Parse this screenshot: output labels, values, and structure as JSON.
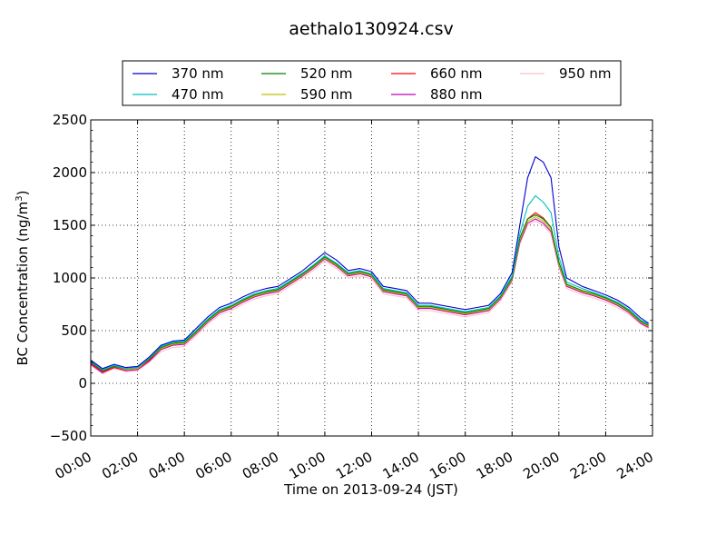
{
  "chart_data": {
    "type": "line",
    "title": "aethalo130924.csv",
    "xlabel": "Time on 2013-09-24 (JST)",
    "ylabel": "BC Concentration (ng/m",
    "ylabel_sup": "3",
    "ylabel_close": ")",
    "xlim": [
      "00:00",
      "24:00"
    ],
    "ylim": [
      -500,
      2500
    ],
    "x_ticks": [
      "00:00",
      "02:00",
      "04:00",
      "06:00",
      "08:00",
      "10:00",
      "12:00",
      "14:00",
      "16:00",
      "18:00",
      "20:00",
      "22:00",
      "24:00"
    ],
    "y_ticks": [
      "2500",
      "2000",
      "1500",
      "1000",
      "500",
      "0",
      "−500"
    ],
    "grid": true,
    "legend_position": "top",
    "x_times": [
      "00:00",
      "00:30",
      "01:00",
      "01:30",
      "02:00",
      "02:30",
      "03:00",
      "03:30",
      "04:00",
      "04:30",
      "05:00",
      "05:30",
      "06:00",
      "06:30",
      "07:00",
      "07:30",
      "08:00",
      "08:30",
      "09:00",
      "09:30",
      "10:00",
      "10:30",
      "11:00",
      "11:30",
      "12:00",
      "12:30",
      "13:00",
      "13:30",
      "14:00",
      "14:30",
      "15:00",
      "15:30",
      "16:00",
      "16:30",
      "17:00",
      "17:30",
      "18:00",
      "18:20",
      "18:40",
      "19:00",
      "19:20",
      "19:40",
      "20:00",
      "20:20",
      "20:40",
      "21:00",
      "21:30",
      "22:00",
      "22:30",
      "23:00",
      "23:30",
      "23:50"
    ],
    "series": [
      {
        "name": "370 nm",
        "color": "#0000cc",
        "values": [
          220,
          140,
          180,
          150,
          160,
          250,
          360,
          400,
          410,
          520,
          630,
          720,
          760,
          820,
          870,
          900,
          920,
          990,
          1060,
          1150,
          1240,
          1170,
          1070,
          1090,
          1060,
          920,
          900,
          880,
          760,
          760,
          740,
          720,
          700,
          720,
          740,
          850,
          1050,
          1500,
          1950,
          2150,
          2100,
          1950,
          1300,
          1000,
          960,
          920,
          880,
          840,
          790,
          720,
          620,
          570
        ]
      },
      {
        "name": "470 nm",
        "color": "#00bfbf",
        "values": [
          210,
          130,
          170,
          140,
          150,
          240,
          350,
          390,
          400,
          500,
          610,
          700,
          740,
          800,
          850,
          880,
          900,
          970,
          1040,
          1120,
          1210,
          1140,
          1050,
          1070,
          1040,
          900,
          880,
          860,
          740,
          740,
          720,
          700,
          680,
          700,
          720,
          830,
          1020,
          1420,
          1680,
          1780,
          1720,
          1620,
          1200,
          960,
          930,
          900,
          860,
          820,
          770,
          700,
          600,
          560
        ]
      },
      {
        "name": "520 nm",
        "color": "#008000",
        "values": [
          200,
          120,
          160,
          140,
          150,
          230,
          340,
          380,
          390,
          490,
          600,
          690,
          730,
          790,
          840,
          870,
          890,
          960,
          1030,
          1110,
          1200,
          1130,
          1040,
          1060,
          1030,
          890,
          870,
          850,
          730,
          730,
          710,
          690,
          670,
          690,
          710,
          820,
          1000,
          1380,
          1560,
          1600,
          1560,
          1480,
          1150,
          940,
          910,
          880,
          850,
          810,
          760,
          690,
          590,
          550
        ]
      },
      {
        "name": "590 nm",
        "color": "#bfbf00",
        "values": [
          200,
          120,
          160,
          130,
          140,
          230,
          330,
          370,
          380,
          480,
          590,
          680,
          720,
          780,
          830,
          860,
          880,
          950,
          1020,
          1100,
          1190,
          1120,
          1030,
          1050,
          1020,
          880,
          860,
          840,
          720,
          720,
          700,
          680,
          660,
          680,
          700,
          810,
          990,
          1360,
          1540,
          1580,
          1540,
          1460,
          1130,
          930,
          900,
          870,
          840,
          800,
          750,
          680,
          580,
          540
        ]
      },
      {
        "name": "660 nm",
        "color": "#ff0000",
        "values": [
          190,
          110,
          150,
          130,
          140,
          220,
          330,
          370,
          380,
          480,
          590,
          680,
          720,
          780,
          830,
          860,
          880,
          950,
          1020,
          1100,
          1190,
          1120,
          1030,
          1050,
          1020,
          880,
          860,
          840,
          720,
          720,
          700,
          680,
          660,
          680,
          700,
          810,
          990,
          1370,
          1560,
          1620,
          1570,
          1480,
          1140,
          930,
          900,
          870,
          840,
          800,
          750,
          680,
          580,
          540
        ]
      },
      {
        "name": "880 nm",
        "color": "#bf00bf",
        "values": [
          180,
          100,
          150,
          120,
          130,
          210,
          320,
          360,
          370,
          470,
          580,
          670,
          710,
          770,
          820,
          850,
          870,
          940,
          1010,
          1090,
          1180,
          1110,
          1020,
          1040,
          1010,
          870,
          850,
          830,
          710,
          710,
          690,
          670,
          650,
          670,
          690,
          800,
          980,
          1340,
          1520,
          1560,
          1520,
          1440,
          1120,
          920,
          890,
          860,
          830,
          790,
          740,
          670,
          570,
          530
        ]
      },
      {
        "name": "950 nm",
        "color": "#ffc0cb",
        "values": [
          170,
          90,
          140,
          110,
          120,
          200,
          300,
          340,
          350,
          450,
          560,
          650,
          690,
          750,
          800,
          830,
          850,
          920,
          990,
          1070,
          1160,
          1090,
          1000,
          1020,
          990,
          850,
          830,
          810,
          690,
          690,
          670,
          650,
          630,
          650,
          670,
          780,
          960,
          1320,
          1500,
          1540,
          1500,
          1420,
          1100,
          900,
          870,
          840,
          810,
          770,
          720,
          650,
          560,
          520
        ]
      }
    ]
  }
}
